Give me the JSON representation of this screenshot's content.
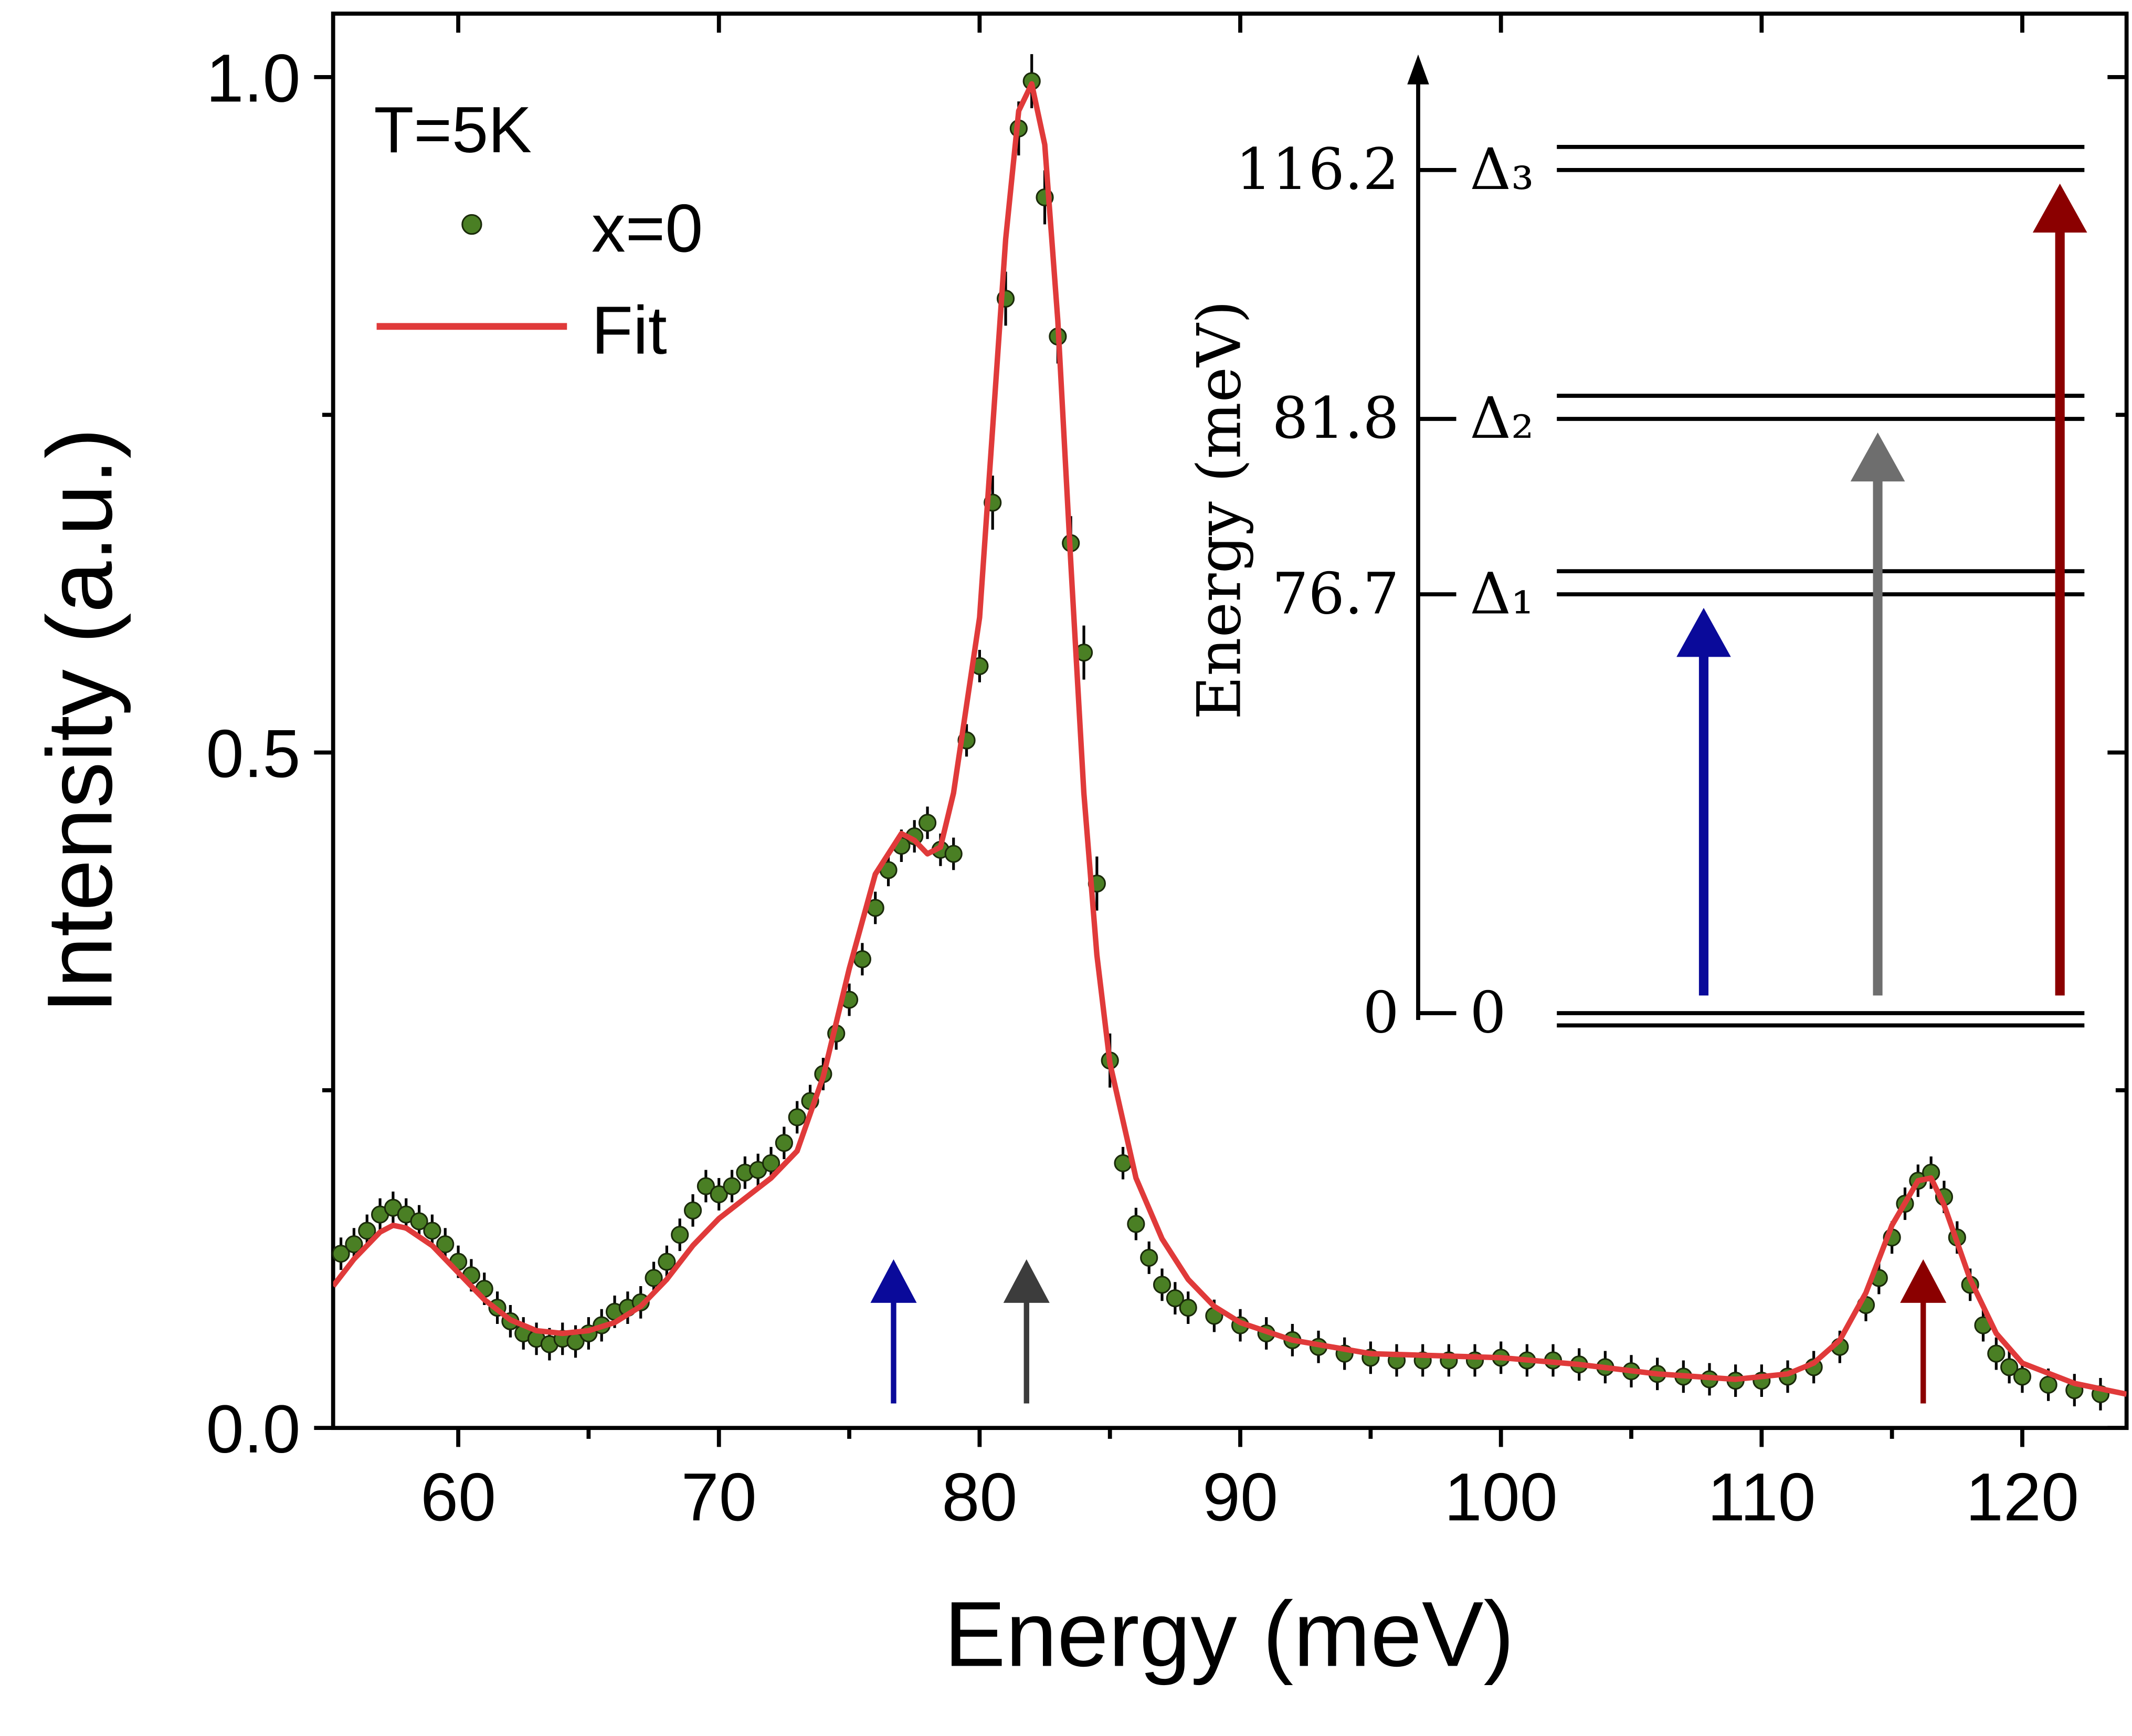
{
  "chart_data": {
    "type": "scatter",
    "xlabel": "Energy (meV)",
    "ylabel": "Intensity (a.u.)",
    "annotation": "T=5K",
    "xlim": [
      55.2,
      124
    ],
    "ylim": [
      0,
      1.047
    ],
    "xticks": [
      60,
      70,
      80,
      90,
      100,
      110,
      120
    ],
    "xticks_minor": [
      65,
      75,
      85,
      95,
      105,
      115
    ],
    "yticks": [
      {
        "value": 0,
        "label": "0.0"
      },
      {
        "value": 0.5,
        "label": "0.5"
      },
      {
        "value": 1,
        "label": "1.0"
      }
    ],
    "yticks_minor": [
      0.25,
      0.75
    ],
    "legend": "upper left",
    "series": [
      {
        "name": "x=0",
        "color": "#4a7f24",
        "x": [
          55.5,
          56,
          56.5,
          57,
          57.5,
          58,
          58.5,
          59,
          59.5,
          60,
          60.5,
          61,
          61.5,
          62,
          62.5,
          63,
          63.5,
          64,
          64.5,
          65,
          65.5,
          66,
          66.5,
          67,
          67.5,
          68,
          68.5,
          69,
          69.5,
          70,
          70.5,
          71,
          71.5,
          72,
          72.5,
          73,
          73.5,
          74,
          74.5,
          75,
          75.5,
          76,
          76.5,
          77,
          77.5,
          78,
          78.5,
          79,
          79.5,
          80,
          80.5,
          81,
          81.5,
          82,
          82.5,
          83,
          83.5,
          84,
          84.5,
          85,
          85.5,
          86,
          86.5,
          87,
          87.5,
          88,
          89,
          90,
          91,
          92,
          93,
          94,
          95,
          96,
          97,
          98,
          99,
          100,
          101,
          102,
          103,
          104,
          105,
          106,
          107,
          108,
          109,
          110,
          111,
          112,
          113,
          114,
          114.5,
          115,
          115.5,
          116,
          116.5,
          117,
          117.5,
          118,
          118.5,
          119,
          119.5,
          120,
          121,
          122,
          123
        ],
        "values": [
          0.129,
          0.136,
          0.146,
          0.158,
          0.163,
          0.158,
          0.153,
          0.146,
          0.136,
          0.123,
          0.113,
          0.103,
          0.089,
          0.079,
          0.07,
          0.066,
          0.062,
          0.066,
          0.064,
          0.07,
          0.076,
          0.086,
          0.089,
          0.093,
          0.111,
          0.123,
          0.143,
          0.161,
          0.179,
          0.173,
          0.179,
          0.189,
          0.191,
          0.196,
          0.211,
          0.23,
          0.242,
          0.262,
          0.292,
          0.317,
          0.347,
          0.385,
          0.413,
          0.431,
          0.438,
          0.448,
          0.428,
          0.425,
          0.509,
          0.564,
          0.685,
          0.836,
          0.962,
          0.997,
          0.911,
          0.808,
          0.655,
          0.574,
          0.403,
          0.272,
          0.196,
          0.151,
          0.126,
          0.106,
          0.096,
          0.089,
          0.083,
          0.076,
          0.07,
          0.065,
          0.06,
          0.055,
          0.052,
          0.05,
          0.05,
          0.05,
          0.05,
          0.052,
          0.05,
          0.05,
          0.047,
          0.045,
          0.042,
          0.04,
          0.038,
          0.036,
          0.035,
          0.035,
          0.038,
          0.045,
          0.06,
          0.091,
          0.111,
          0.141,
          0.166,
          0.183,
          0.189,
          0.171,
          0.141,
          0.106,
          0.076,
          0.055,
          0.045,
          0.038,
          0.032,
          0.028,
          0.025
        ],
        "errors": [
          0.012,
          0.012,
          0.012,
          0.012,
          0.012,
          0.012,
          0.012,
          0.012,
          0.012,
          0.012,
          0.012,
          0.012,
          0.012,
          0.012,
          0.012,
          0.012,
          0.012,
          0.012,
          0.012,
          0.012,
          0.012,
          0.012,
          0.012,
          0.012,
          0.012,
          0.012,
          0.012,
          0.012,
          0.012,
          0.012,
          0.012,
          0.012,
          0.012,
          0.012,
          0.012,
          0.012,
          0.012,
          0.012,
          0.012,
          0.012,
          0.012,
          0.012,
          0.012,
          0.012,
          0.012,
          0.012,
          0.012,
          0.012,
          0.012,
          0.012,
          0.02,
          0.02,
          0.02,
          0.02,
          0.02,
          0.02,
          0.02,
          0.02,
          0.02,
          0.02,
          0.012,
          0.012,
          0.012,
          0.012,
          0.012,
          0.012,
          0.012,
          0.012,
          0.012,
          0.012,
          0.012,
          0.012,
          0.012,
          0.012,
          0.012,
          0.012,
          0.012,
          0.012,
          0.012,
          0.012,
          0.012,
          0.012,
          0.012,
          0.012,
          0.012,
          0.012,
          0.012,
          0.012,
          0.012,
          0.012,
          0.012,
          0.012,
          0.012,
          0.012,
          0.012,
          0.012,
          0.012,
          0.012,
          0.012,
          0.012,
          0.012,
          0.012,
          0.012,
          0.012,
          0.012,
          0.012,
          0.012
        ]
      },
      {
        "name": "Fit",
        "color": "#e03a3a",
        "type": "line",
        "x": [
          55.2,
          56,
          57,
          57.5,
          58,
          59,
          60,
          61,
          62,
          63,
          64,
          65,
          66,
          67,
          68,
          69,
          70,
          71,
          72,
          73,
          74,
          75,
          76,
          77,
          77.5,
          78,
          78.5,
          79,
          80,
          80.5,
          81,
          81.5,
          82,
          82.5,
          83,
          83.5,
          84,
          84.5,
          85,
          86,
          87,
          88,
          89,
          90,
          92,
          95,
          100,
          103,
          106,
          109,
          111,
          112,
          113,
          114,
          115,
          116,
          116.5,
          117,
          118,
          119,
          120,
          122,
          124
        ],
        "values": [
          0.105,
          0.125,
          0.145,
          0.15,
          0.148,
          0.135,
          0.115,
          0.095,
          0.08,
          0.072,
          0.07,
          0.072,
          0.078,
          0.09,
          0.11,
          0.135,
          0.155,
          0.17,
          0.185,
          0.205,
          0.26,
          0.34,
          0.41,
          0.44,
          0.435,
          0.425,
          0.43,
          0.47,
          0.6,
          0.74,
          0.88,
          0.975,
          0.995,
          0.95,
          0.82,
          0.64,
          0.47,
          0.35,
          0.27,
          0.185,
          0.14,
          0.11,
          0.09,
          0.078,
          0.065,
          0.055,
          0.052,
          0.047,
          0.04,
          0.036,
          0.04,
          0.048,
          0.065,
          0.1,
          0.15,
          0.183,
          0.185,
          0.165,
          0.11,
          0.07,
          0.048,
          0.033,
          0.025
        ]
      }
    ],
    "inset": {
      "ylabel": "Energy (meV)",
      "levels": [
        {
          "energy": 0,
          "label": "0"
        },
        {
          "energy": 76.7,
          "label": "Δ₁",
          "color": "#0a0a9a"
        },
        {
          "energy": 81.8,
          "label": "Δ₂",
          "color": "#6e6e6e"
        },
        {
          "energy": 116.2,
          "label": "Δ₃",
          "color": "#8b0000"
        }
      ]
    }
  }
}
